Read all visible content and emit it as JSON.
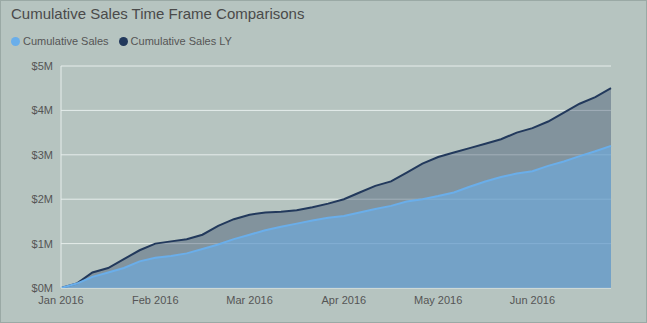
{
  "chart_data": {
    "type": "area",
    "title": "Cumulative Sales Time Frame Comparisons",
    "categories": [
      "Jan 2016",
      null,
      null,
      null,
      null,
      null,
      "Feb 2016",
      null,
      null,
      null,
      null,
      null,
      "Mar 2016",
      null,
      null,
      null,
      null,
      null,
      "Apr 2016",
      null,
      null,
      null,
      null,
      null,
      "May 2016",
      null,
      null,
      null,
      null,
      null,
      "Jun 2016",
      null,
      null,
      null,
      null,
      null
    ],
    "series": [
      {
        "name": "Cumulative Sales",
        "color": "#6aaeea",
        "values": [
          0,
          0.1,
          0.25,
          0.35,
          0.45,
          0.6,
          0.68,
          0.72,
          0.78,
          0.88,
          0.98,
          1.1,
          1.2,
          1.3,
          1.38,
          1.45,
          1.52,
          1.58,
          1.62,
          1.7,
          1.78,
          1.85,
          1.95,
          2.0,
          2.07,
          2.15,
          2.28,
          2.4,
          2.5,
          2.58,
          2.63,
          2.75,
          2.85,
          2.97,
          3.08,
          3.2
        ]
      },
      {
        "name": "Cumulative Sales LY",
        "color": "#22395c",
        "values": [
          0,
          0.1,
          0.35,
          0.45,
          0.65,
          0.85,
          1.0,
          1.05,
          1.1,
          1.2,
          1.4,
          1.55,
          1.65,
          1.7,
          1.72,
          1.75,
          1.82,
          1.9,
          2.0,
          2.15,
          2.3,
          2.4,
          2.6,
          2.8,
          2.95,
          3.05,
          3.15,
          3.25,
          3.35,
          3.5,
          3.6,
          3.75,
          3.95,
          4.15,
          4.3,
          4.5
        ]
      }
    ],
    "ylim": [
      0,
      5
    ],
    "yticks": [
      {
        "value": 0,
        "label": "$0M"
      },
      {
        "value": 1,
        "label": "$1M"
      },
      {
        "value": 2,
        "label": "$2M"
      },
      {
        "value": 3,
        "label": "$3M"
      },
      {
        "value": 4,
        "label": "$4M"
      },
      {
        "value": 5,
        "label": "$5M"
      }
    ],
    "grid": true,
    "legend": "top-left",
    "stacked": false
  }
}
